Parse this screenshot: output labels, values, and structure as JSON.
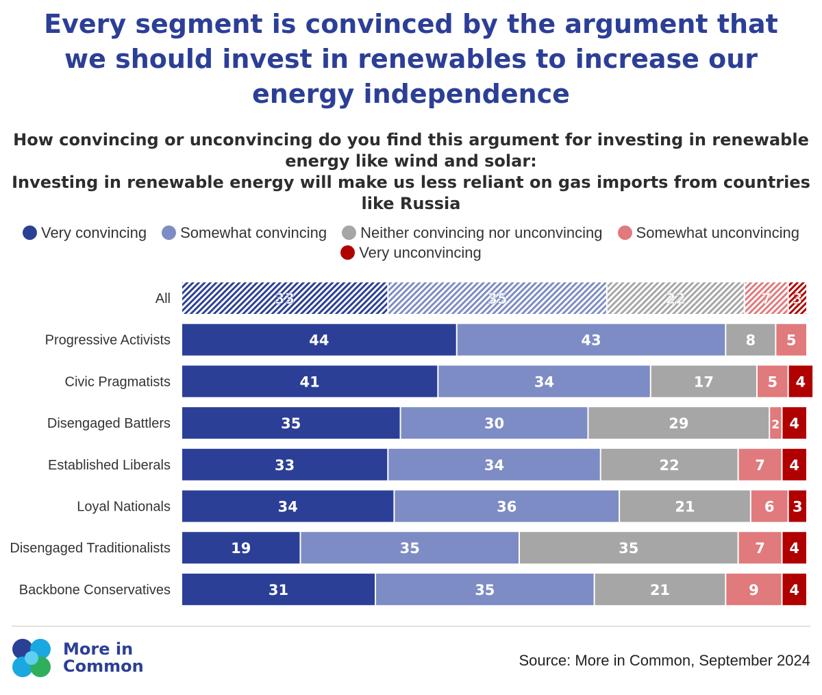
{
  "chart_data": {
    "type": "bar",
    "orientation": "horizontal",
    "stacked": true,
    "title": "Every segment is convinced by the argument that we should invest in renewables to increase our energy independence",
    "subtitle_question": "How convincing or unconvincing do you find this argument for investing in renewable energy like wind and solar:",
    "subtitle_statement": "Investing in renewable energy will make us less reliant on gas imports from countries like Russia",
    "categories": [
      "All",
      "Progressive Activists",
      "Civic Pragmatists",
      "Disengaged Battlers",
      "Established Liberals",
      "Loyal Nationals",
      "Disengaged Traditionalists",
      "Backbone Conservatives"
    ],
    "highlighted_category": "All",
    "series": [
      {
        "name": "Very convincing",
        "color": "#2c3f97",
        "values": [
          33,
          44,
          41,
          35,
          33,
          34,
          19,
          31
        ]
      },
      {
        "name": "Somewhat convincing",
        "color": "#7d8cc4",
        "values": [
          35,
          43,
          34,
          30,
          34,
          36,
          35,
          35
        ]
      },
      {
        "name": "Neither convincing nor unconvincing",
        "color": "#a6a6a6",
        "values": [
          22,
          8,
          17,
          29,
          22,
          21,
          35,
          21
        ]
      },
      {
        "name": "Somewhat unconvincing",
        "color": "#e07a7c",
        "values": [
          7,
          5,
          5,
          2,
          7,
          6,
          7,
          9
        ]
      },
      {
        "name": "Very unconvincing",
        "color": "#b00000",
        "values": [
          3,
          null,
          4,
          4,
          4,
          3,
          4,
          4
        ]
      }
    ],
    "xlim": [
      0,
      100
    ],
    "grid": false,
    "legend_position": "top"
  },
  "footer": {
    "logo_line1": "More in",
    "logo_line2": "Common",
    "source": "Source: More in Common, September 2024"
  }
}
